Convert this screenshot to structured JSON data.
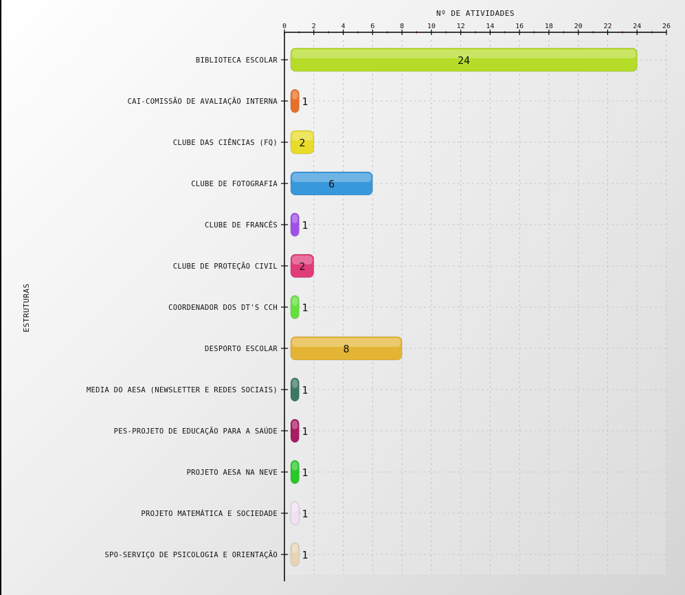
{
  "chart_data": {
    "type": "bar",
    "orientation": "horizontal",
    "xlabel": "Nº DE ATIVIDADES",
    "ylabel": "ESTRUTURAS",
    "xlim": [
      0,
      26
    ],
    "xticks": [
      0,
      2,
      4,
      6,
      8,
      10,
      12,
      14,
      16,
      18,
      20,
      22,
      24,
      26
    ],
    "x_axis_position": "top",
    "grid": true,
    "categories": [
      "BIBLIOTECA ESCOLAR",
      "CAI-COMISSÃO DE AVALIAÇÃO INTERNA",
      "CLUBE DAS CIÊNCIAS (FQ)",
      "CLUBE DE FOTOGRAFIA",
      "CLUBE DE FRANCÊS",
      "CLUBE DE PROTEÇÃO CIVIL",
      "COORDENADOR DOS DT'S CCH",
      "DESPORTO ESCOLAR",
      "MEDIA DO AESA (NEWSLETTER E REDES SOCIAIS)",
      "PES-PROJETO DE EDUCAÇÃO PARA A SAÚDE",
      "PROJETO AESA NA NEVE",
      "PROJETO MATEMÁTICA E SOCIEDADE",
      "SPO-SERVIÇO DE PSICOLOGIA E ORIENTAÇÃO"
    ],
    "values": [
      24,
      1,
      2,
      6,
      1,
      2,
      1,
      8,
      1,
      1,
      1,
      1,
      1
    ],
    "data_labels": [
      "24",
      "1",
      "2",
      "6",
      "1",
      "2",
      "1",
      "8",
      "1",
      "1",
      "1",
      "1",
      "1"
    ],
    "colors": [
      "#b5dc28",
      "#e87028",
      "#e8dc28",
      "#3898dc",
      "#a050e8",
      "#e03c78",
      "#64e03c",
      "#e4b434",
      "#3c7864",
      "#a81c64",
      "#28c828",
      "#f0e0f0",
      "#e8d4b4"
    ]
  }
}
